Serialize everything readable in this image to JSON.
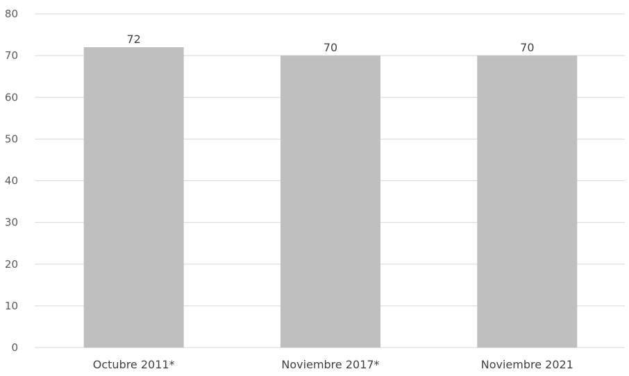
{
  "chart_data": {
    "type": "bar",
    "title": "",
    "xlabel": "",
    "ylabel": "",
    "categories": [
      "Octubre 2011*",
      "Noviembre 2017*",
      "Noviembre 2021"
    ],
    "values": [
      72,
      70,
      70
    ],
    "data_labels": [
      "72",
      "70",
      "70"
    ],
    "ylim": [
      0,
      80
    ],
    "yticks": [
      0,
      10,
      20,
      30,
      40,
      50,
      60,
      70,
      80
    ],
    "grid": true,
    "legend": "none",
    "bar_color": "#bfbfbf"
  }
}
